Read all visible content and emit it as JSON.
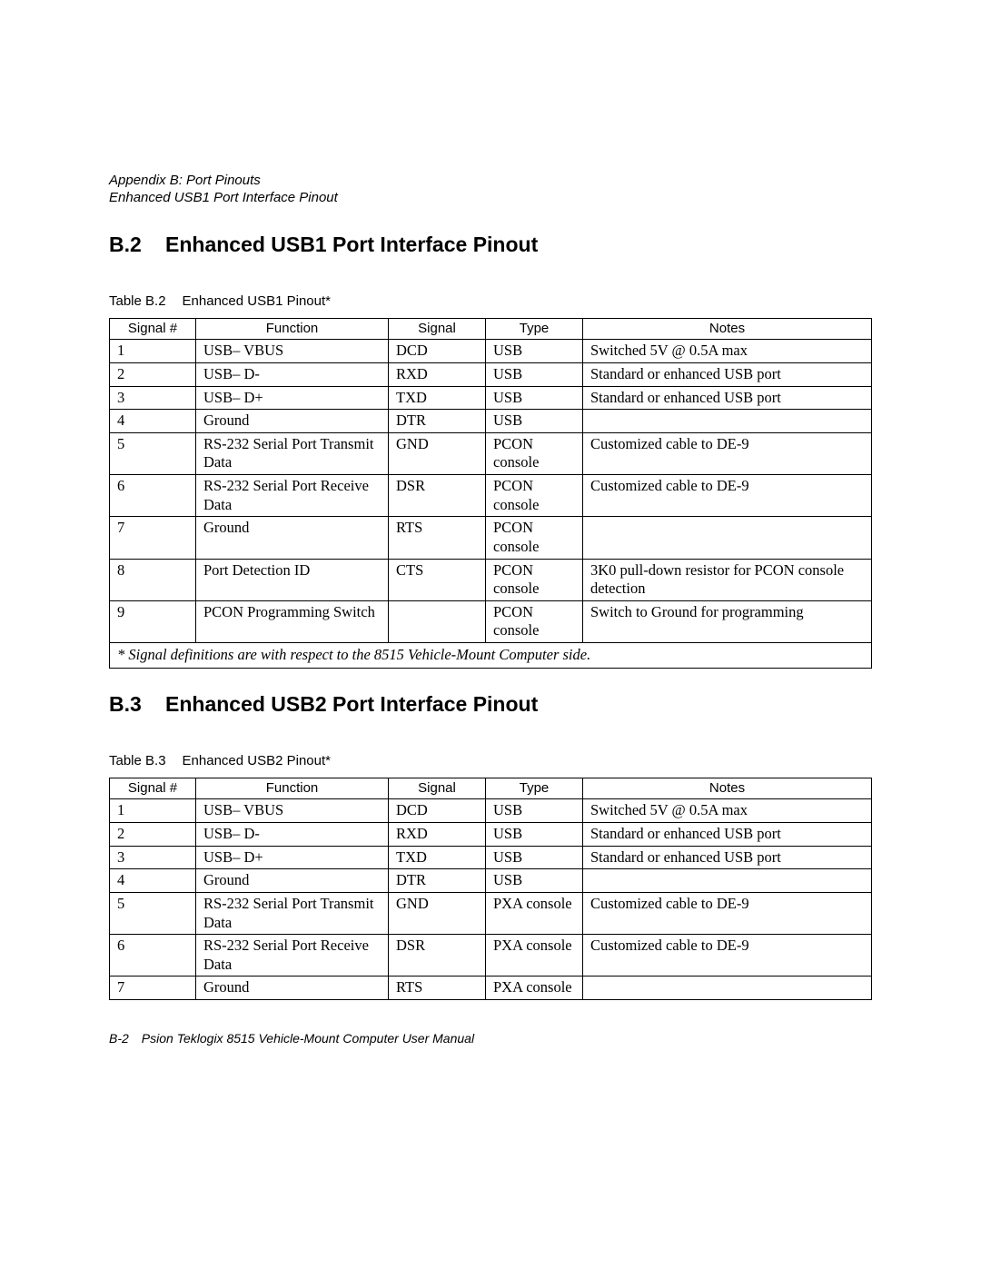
{
  "header": {
    "line1": "Appendix B: Port Pinouts",
    "line2": "Enhanced USB1 Port Interface Pinout"
  },
  "sections": [
    {
      "number": "B.2",
      "title": "Enhanced USB1 Port Interface Pinout",
      "table_caption_label": "Table B.2",
      "table_caption_text": "Enhanced USB1 Pinout*",
      "columns": [
        "Signal #",
        "Function",
        "Signal",
        "Type",
        "Notes"
      ],
      "rows": [
        [
          "1",
          "USB– VBUS",
          "DCD",
          "USB",
          "Switched 5V @ 0.5A max"
        ],
        [
          "2",
          "USB– D-",
          "RXD",
          "USB",
          "Standard or enhanced USB port"
        ],
        [
          "3",
          "USB– D+",
          "TXD",
          "USB",
          "Standard or enhanced USB port"
        ],
        [
          "4",
          "Ground",
          "DTR",
          "USB",
          ""
        ],
        [
          "5",
          "RS-232 Serial Port Transmit Data",
          "GND",
          "PCON console",
          "Customized cable to DE-9"
        ],
        [
          "6",
          "RS-232 Serial Port Receive Data",
          "DSR",
          "PCON console",
          "Customized cable to DE-9"
        ],
        [
          "7",
          "Ground",
          "RTS",
          "PCON console",
          ""
        ],
        [
          "8",
          "Port Detection ID",
          "CTS",
          "PCON console",
          "3K0 pull-down resistor for PCON console detection"
        ],
        [
          "9",
          "PCON Programming Switch",
          "",
          "PCON console",
          "Switch to Ground for programming"
        ]
      ],
      "footnote": "* Signal definitions are with respect to the 8515 Vehicle-Mount Computer side."
    },
    {
      "number": "B.3",
      "title": "Enhanced USB2 Port Interface Pinout",
      "table_caption_label": "Table B.3",
      "table_caption_text": "Enhanced USB2 Pinout*",
      "columns": [
        "Signal #",
        "Function",
        "Signal",
        "Type",
        "Notes"
      ],
      "rows": [
        [
          "1",
          "USB– VBUS",
          "DCD",
          "USB",
          "Switched 5V @ 0.5A max"
        ],
        [
          "2",
          "USB– D-",
          "RXD",
          "USB",
          "Standard or enhanced USB port"
        ],
        [
          "3",
          "USB– D+",
          "TXD",
          "USB",
          "Standard or enhanced USB port"
        ],
        [
          "4",
          "Ground",
          "DTR",
          "USB",
          ""
        ],
        [
          "5",
          "RS-232 Serial Port Transmit Data",
          "GND",
          "PXA console",
          "Customized cable to DE-9"
        ],
        [
          "6",
          "RS-232 Serial Port Receive Data",
          "DSR",
          "PXA console",
          "Customized cable to DE-9"
        ],
        [
          "7",
          "Ground",
          "RTS",
          "PXA console",
          ""
        ]
      ],
      "footnote": null
    }
  ],
  "footer": {
    "page_number": "B-2",
    "manual_title": "Psion Teklogix 8515 Vehicle-Mount Computer User Manual"
  },
  "style": {
    "text_color": "#000000",
    "background_color": "#ffffff",
    "border_color": "#000000",
    "heading_font": "Arial",
    "body_font": "Times New Roman",
    "heading_fontsize_pt": 17,
    "caption_fontsize_pt": 11,
    "body_fontsize_pt": 12,
    "header_fontsize_pt": 11,
    "footer_fontsize_pt": 10
  }
}
